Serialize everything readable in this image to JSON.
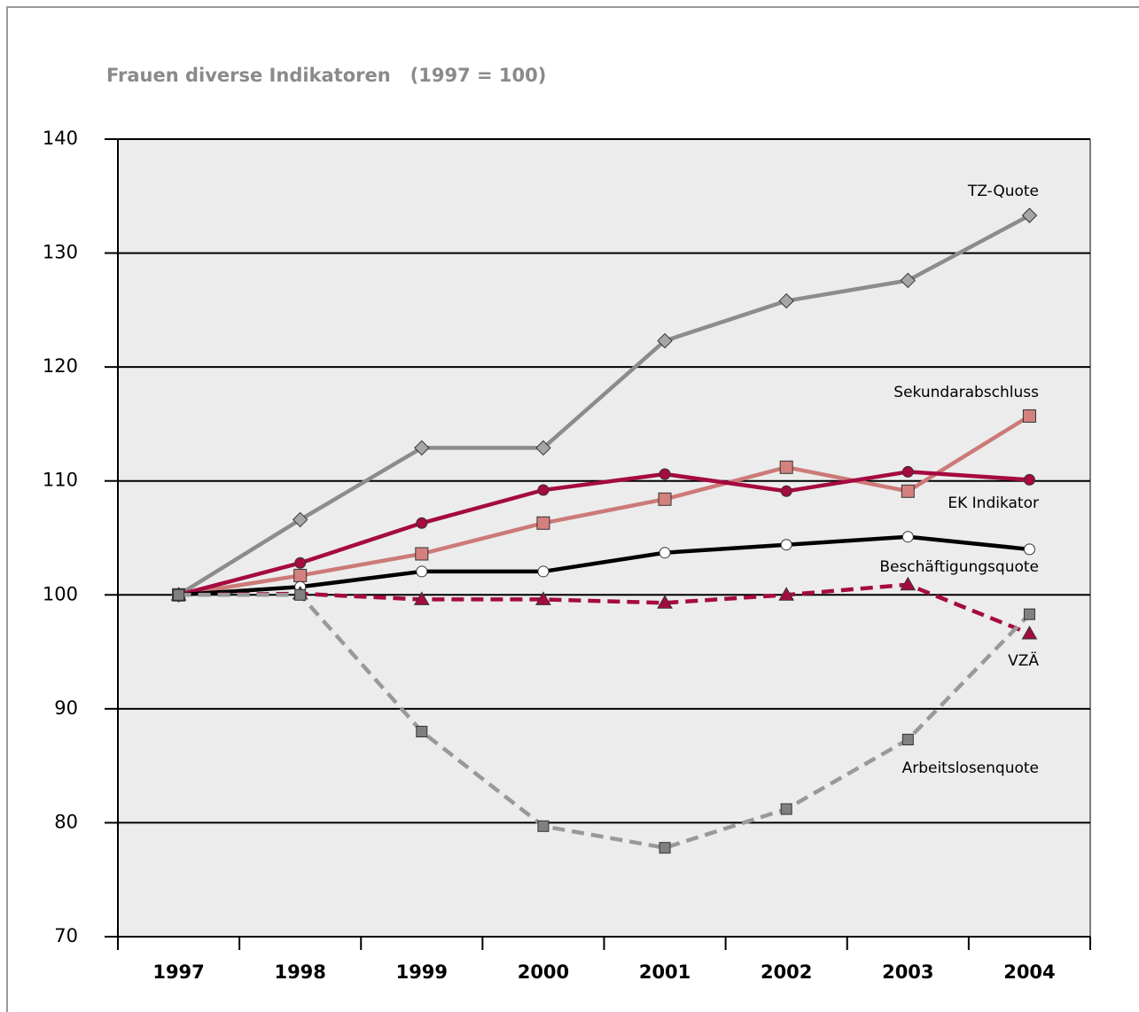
{
  "chart_data": {
    "type": "line",
    "title": "Frauen diverse Indikatoren   (1997 = 100)",
    "categories": [
      "1997",
      "1998",
      "1999",
      "2000",
      "2001",
      "2002",
      "2003",
      "2004"
    ],
    "ylim": [
      70,
      140
    ],
    "yticks": [
      70,
      80,
      90,
      100,
      110,
      120,
      130,
      140
    ],
    "grid": true,
    "series": [
      {
        "name": "TZ-Quote",
        "color": "#8c8c8c",
        "marker_color": "#a6a6a6",
        "marker": "diamond",
        "dashed": false,
        "values": [
          100,
          106.6,
          112.9,
          112.9,
          122.3,
          125.8,
          127.6,
          133.3
        ]
      },
      {
        "name": "Sekundarabschluss",
        "color": "#cc7a78",
        "marker_color": "#d4807c",
        "marker": "square",
        "dashed": false,
        "values": [
          100,
          101.7,
          103.6,
          106.3,
          108.4,
          111.2,
          109.1,
          115.7
        ]
      },
      {
        "name": "EK Indikator",
        "color": "#a50a40",
        "marker_color": "#a50a40",
        "marker": "circle",
        "dashed": false,
        "values": [
          100,
          102.8,
          106.3,
          109.2,
          110.6,
          109.1,
          110.8,
          110.1
        ]
      },
      {
        "name": "Beschäftigungsquote",
        "color": "#000000",
        "marker_color": "#ffffff",
        "marker": "circle",
        "dashed": false,
        "values": [
          100,
          100.7,
          102.05,
          102.05,
          103.7,
          104.4,
          105.1,
          104
        ]
      },
      {
        "name": "VZÄ",
        "color": "#a50a40",
        "marker_color": "#a50a40",
        "marker": "triangle",
        "dashed": true,
        "values": [
          100,
          100.1,
          99.6,
          99.6,
          99.3,
          100,
          100.9,
          96.6
        ]
      },
      {
        "name": "Arbeitslosenquote",
        "color": "#999999",
        "marker_color": "#808080",
        "marker": "smallsquare",
        "dashed": true,
        "values": [
          100,
          100,
          88,
          79.7,
          77.8,
          81.2,
          87.3,
          98.3
        ]
      }
    ]
  }
}
